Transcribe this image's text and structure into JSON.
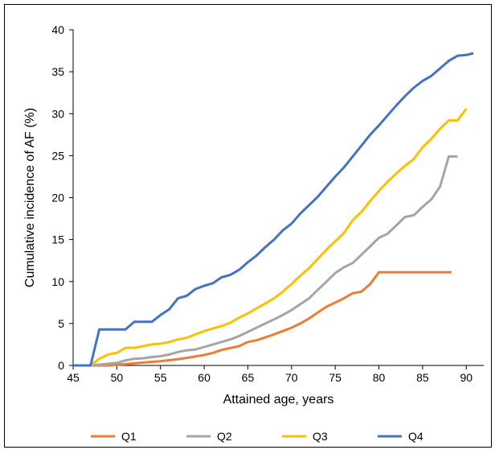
{
  "chart_data": {
    "type": "line",
    "title": "",
    "xlabel": "Attained age, years",
    "ylabel": "Cumulative incidence of AF (%)",
    "xlim": [
      45,
      92
    ],
    "ylim": [
      0,
      40
    ],
    "xticks": [
      45,
      50,
      55,
      60,
      65,
      70,
      75,
      80,
      85,
      90
    ],
    "yticks": [
      0,
      5,
      10,
      15,
      20,
      25,
      30,
      35,
      40
    ],
    "grid": false,
    "legend_position": "bottom",
    "series": [
      {
        "name": "Q1",
        "color": "#ED7D31",
        "points": [
          [
            45,
            0
          ],
          [
            47,
            0
          ],
          [
            49,
            0
          ],
          [
            50,
            0.1
          ],
          [
            51,
            0.15
          ],
          [
            52,
            0.25
          ],
          [
            53,
            0.35
          ],
          [
            55,
            0.5
          ],
          [
            57,
            0.75
          ],
          [
            58,
            0.9
          ],
          [
            60,
            1.25
          ],
          [
            61,
            1.5
          ],
          [
            62,
            1.85
          ],
          [
            64,
            2.3
          ],
          [
            65,
            2.8
          ],
          [
            66,
            3.0
          ],
          [
            67,
            3.35
          ],
          [
            68,
            3.7
          ],
          [
            69,
            4.1
          ],
          [
            70,
            4.5
          ],
          [
            71,
            5.0
          ],
          [
            72,
            5.6
          ],
          [
            73,
            6.3
          ],
          [
            74,
            7.0
          ],
          [
            75,
            7.5
          ],
          [
            76,
            8.0
          ],
          [
            77,
            8.6
          ],
          [
            78,
            8.8
          ],
          [
            79,
            9.7
          ],
          [
            80,
            11.1
          ],
          [
            85,
            11.1
          ],
          [
            88.3,
            11.1
          ]
        ]
      },
      {
        "name": "Q2",
        "color": "#A5A5A5",
        "points": [
          [
            45,
            0
          ],
          [
            47,
            0
          ],
          [
            48,
            0.1
          ],
          [
            49,
            0.2
          ],
          [
            50,
            0.3
          ],
          [
            51,
            0.6
          ],
          [
            52,
            0.8
          ],
          [
            53,
            0.85
          ],
          [
            54,
            1.0
          ],
          [
            55,
            1.1
          ],
          [
            56,
            1.3
          ],
          [
            57,
            1.6
          ],
          [
            58,
            1.8
          ],
          [
            59,
            1.9
          ],
          [
            60,
            2.2
          ],
          [
            61,
            2.5
          ],
          [
            62,
            2.8
          ],
          [
            63,
            3.1
          ],
          [
            64,
            3.5
          ],
          [
            65,
            4.0
          ],
          [
            66,
            4.5
          ],
          [
            67,
            5.0
          ],
          [
            68,
            5.5
          ],
          [
            69,
            6.0
          ],
          [
            70,
            6.6
          ],
          [
            71,
            7.3
          ],
          [
            72,
            8.0
          ],
          [
            73,
            9.0
          ],
          [
            74,
            10.0
          ],
          [
            75,
            11.0
          ],
          [
            76,
            11.7
          ],
          [
            77,
            12.2
          ],
          [
            78,
            13.2
          ],
          [
            79,
            14.2
          ],
          [
            80,
            15.2
          ],
          [
            81,
            15.7
          ],
          [
            82,
            16.7
          ],
          [
            83,
            17.7
          ],
          [
            84,
            17.9
          ],
          [
            85,
            18.9
          ],
          [
            86,
            19.8
          ],
          [
            87,
            21.3
          ],
          [
            88,
            24.9
          ],
          [
            89,
            24.9
          ]
        ]
      },
      {
        "name": "Q3",
        "color": "#FFC000",
        "points": [
          [
            45,
            0
          ],
          [
            47,
            0
          ],
          [
            48,
            0.8
          ],
          [
            49,
            1.3
          ],
          [
            50,
            1.5
          ],
          [
            51,
            2.1
          ],
          [
            52,
            2.1
          ],
          [
            53,
            2.3
          ],
          [
            54,
            2.5
          ],
          [
            55,
            2.6
          ],
          [
            56,
            2.8
          ],
          [
            57,
            3.1
          ],
          [
            58,
            3.3
          ],
          [
            59,
            3.7
          ],
          [
            60,
            4.1
          ],
          [
            61,
            4.4
          ],
          [
            62,
            4.7
          ],
          [
            63,
            5.1
          ],
          [
            64,
            5.7
          ],
          [
            65,
            6.2
          ],
          [
            66,
            6.8
          ],
          [
            67,
            7.4
          ],
          [
            68,
            8.0
          ],
          [
            69,
            8.8
          ],
          [
            70,
            9.7
          ],
          [
            71,
            10.7
          ],
          [
            72,
            11.6
          ],
          [
            73,
            12.7
          ],
          [
            74,
            13.8
          ],
          [
            75,
            14.8
          ],
          [
            76,
            15.8
          ],
          [
            77,
            17.3
          ],
          [
            78,
            18.3
          ],
          [
            79,
            19.6
          ],
          [
            80,
            20.8
          ],
          [
            81,
            21.9
          ],
          [
            82,
            22.9
          ],
          [
            83,
            23.8
          ],
          [
            84,
            24.6
          ],
          [
            85,
            26.0
          ],
          [
            86,
            27.0
          ],
          [
            87,
            28.2
          ],
          [
            88,
            29.2
          ],
          [
            89,
            29.2
          ],
          [
            90,
            30.6
          ]
        ]
      },
      {
        "name": "Q4",
        "color": "#4472C4",
        "points": [
          [
            45,
            0
          ],
          [
            47,
            0
          ],
          [
            48,
            4.3
          ],
          [
            51,
            4.3
          ],
          [
            52,
            5.2
          ],
          [
            54,
            5.2
          ],
          [
            55,
            6.0
          ],
          [
            56,
            6.7
          ],
          [
            57,
            8.0
          ],
          [
            58,
            8.3
          ],
          [
            59,
            9.1
          ],
          [
            60,
            9.5
          ],
          [
            61,
            9.8
          ],
          [
            62,
            10.5
          ],
          [
            63,
            10.8
          ],
          [
            64,
            11.4
          ],
          [
            65,
            12.3
          ],
          [
            66,
            13.1
          ],
          [
            67,
            14.1
          ],
          [
            68,
            15.0
          ],
          [
            69,
            16.1
          ],
          [
            70,
            16.9
          ],
          [
            71,
            18.1
          ],
          [
            72,
            19.1
          ],
          [
            73,
            20.1
          ],
          [
            74,
            21.3
          ],
          [
            75,
            22.5
          ],
          [
            76,
            23.6
          ],
          [
            77,
            24.9
          ],
          [
            78,
            26.2
          ],
          [
            79,
            27.5
          ],
          [
            80,
            28.6
          ],
          [
            81,
            29.8
          ],
          [
            82,
            31.0
          ],
          [
            83,
            32.1
          ],
          [
            84,
            33.1
          ],
          [
            85,
            33.9
          ],
          [
            86,
            34.5
          ],
          [
            87,
            35.4
          ],
          [
            88,
            36.3
          ],
          [
            89,
            36.9
          ],
          [
            90,
            37.0
          ],
          [
            90.8,
            37.2
          ]
        ]
      }
    ]
  }
}
